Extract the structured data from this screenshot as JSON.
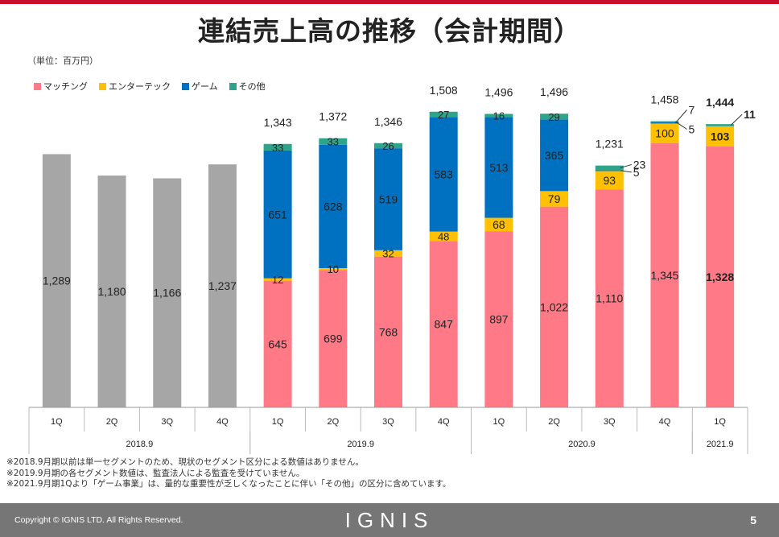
{
  "page": {
    "title": "連結売上高の推移（会計期間）",
    "unit_label": "（単位：百万円）",
    "notes": [
      "※2018.9月期以前は単一セグメントのため、現状のセグメント区分による数値はありません。",
      "※2019.9月期の各セグメント数値は、監査法人による監査を受けていません。",
      "※2021.9月期1Qより「ゲーム事業」は、量的な重要性が乏しくなったことに伴い「その他」の区分に含めています。"
    ],
    "copyright": "Copyright ©  IGNIS LTD. All Rights Reserved.",
    "logo": "IGNIS",
    "page_number": "5"
  },
  "chart_data": {
    "type": "bar",
    "stacked": true,
    "ylim": [
      0,
      1600
    ],
    "categories": [
      "1Q",
      "2Q",
      "3Q",
      "4Q",
      "1Q",
      "2Q",
      "3Q",
      "4Q",
      "1Q",
      "2Q",
      "3Q",
      "4Q",
      "1Q"
    ],
    "groups": [
      {
        "label": "2018.9",
        "start": 0,
        "end": 3
      },
      {
        "label": "2019.9",
        "start": 4,
        "end": 7
      },
      {
        "label": "2020.9",
        "start": 8,
        "end": 11
      },
      {
        "label": "2021.9",
        "start": 12,
        "end": 12
      }
    ],
    "legend": [
      {
        "name": "マッチング",
        "color": "#ff7a86"
      },
      {
        "name": "エンターテック",
        "color": "#ffc000"
      },
      {
        "name": "ゲーム",
        "color": "#0070c0"
      },
      {
        "name": "その他",
        "color": "#2ea58a"
      }
    ],
    "single_segment": {
      "color": "#a6a6a6",
      "values": [
        1289,
        1180,
        1166,
        1237
      ],
      "labels": [
        "1,289",
        "1,180",
        "1,166",
        "1,237"
      ]
    },
    "series": [
      {
        "key": "matching",
        "color": "#ff7a86",
        "values": [
          null,
          null,
          null,
          null,
          645,
          699,
          768,
          847,
          897,
          1022,
          1110,
          1345,
          1328
        ],
        "labels": [
          "",
          "",
          "",
          "",
          "645",
          "699",
          "768",
          "847",
          "897",
          "1,022",
          "1,110",
          "1,345",
          "1,328"
        ]
      },
      {
        "key": "entertech",
        "color": "#ffc000",
        "values": [
          null,
          null,
          null,
          null,
          12,
          10,
          32,
          48,
          68,
          79,
          93,
          100,
          103
        ],
        "labels": [
          "",
          "",
          "",
          "",
          "12",
          "10",
          "32",
          "48",
          "68",
          "79",
          "93",
          "100",
          "103"
        ]
      },
      {
        "key": "game",
        "color": "#0070c0",
        "values": [
          null,
          null,
          null,
          null,
          651,
          628,
          519,
          583,
          513,
          365,
          5,
          7,
          null
        ],
        "labels": [
          "",
          "",
          "",
          "",
          "651",
          "628",
          "519",
          "583",
          "513",
          "365",
          "5",
          "7",
          ""
        ]
      },
      {
        "key": "other",
        "color": "#2ea58a",
        "values": [
          null,
          null,
          null,
          null,
          33,
          33,
          26,
          27,
          16,
          29,
          23,
          5,
          11
        ],
        "labels": [
          "",
          "",
          "",
          "",
          "33",
          "33",
          "26",
          "27",
          "16",
          "29",
          "23",
          "5",
          "11"
        ]
      }
    ],
    "totals": [
      "",
      "",
      "",
      "",
      "1,343",
      "1,372",
      "1,346",
      "1,508",
      "1,496",
      "1,496",
      "1,231",
      "1,458",
      "1,444"
    ]
  }
}
